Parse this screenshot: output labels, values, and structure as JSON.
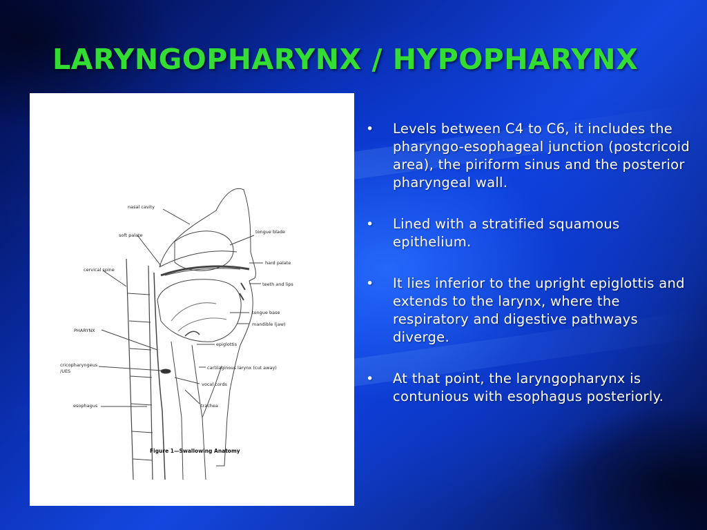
{
  "slide": {
    "title": "LARYNGOPHARYNX / HYPOPHARYNX",
    "bullets": [
      "Levels between C4 to C6, it includes the pharyngo-esophageal junction (postcricoid area), the piriform sinus and the posterior pharyngeal wall.",
      "Lined with a stratified squamous epithelium.",
      "It lies inferior to the upright epiglottis and extends to the larynx, where the respiratory and digestive pathways diverge.",
      "At that point, the laryngopharynx  is contunious with esophagus posteriorly."
    ],
    "bullet_glyph": "•"
  },
  "figure": {
    "caption": "Figure 1—Swallowing Anatomy",
    "labels": {
      "nasal_cavity": "nasal cavity",
      "soft_palate": "soft palate",
      "tongue_blade": "tongue blade",
      "hard_palate": "hard palate",
      "cervical_spine": "cervical spine",
      "teeth_and_lips": "teeth and lips",
      "tongue_base": "tongue base",
      "mandible": "mandible (jaw)",
      "pharynx": "PHARYNX",
      "epiglottis": "epiglottis",
      "cricopharyngeus_1": "cricopharyngeus",
      "cricopharyngeus_2": "/UES",
      "cartilaginous_larynx": "cartilaginous larynx (cut  away)",
      "vocal_cords": "vocal cords",
      "esophagus": "esophagus",
      "trachea": "trachea"
    }
  },
  "colors": {
    "title": "#33dd33",
    "body_text": "#ffffff",
    "background_core": "#1447e0",
    "background_edge": "#020a3e"
  }
}
